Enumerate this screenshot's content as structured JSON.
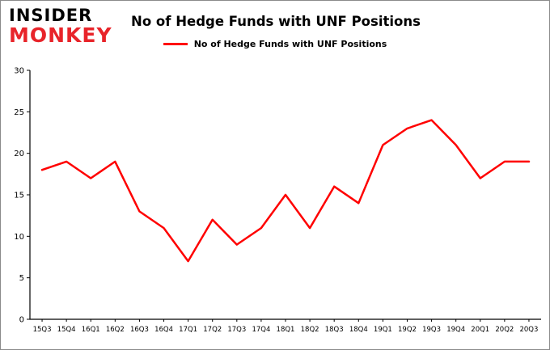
{
  "logo": {
    "line1": "INSIDER",
    "line2": "MONKEY"
  },
  "title": "No of Hedge Funds with UNF Positions",
  "legend": {
    "label": "No of Hedge Funds with UNF Positions",
    "color": "#ff0000"
  },
  "chart_data": {
    "type": "line",
    "title": "No of Hedge Funds with UNF Positions",
    "xlabel": "",
    "ylabel": "",
    "categories": [
      "15Q3",
      "15Q4",
      "16Q1",
      "16Q2",
      "16Q3",
      "16Q4",
      "17Q1",
      "17Q2",
      "17Q3",
      "17Q4",
      "18Q1",
      "18Q2",
      "18Q3",
      "18Q4",
      "19Q1",
      "19Q2",
      "19Q3",
      "19Q4",
      "20Q1",
      "20Q2",
      "20Q3"
    ],
    "series": [
      {
        "name": "No of Hedge Funds with UNF Positions",
        "values": [
          18,
          19,
          17,
          19,
          13,
          11,
          7,
          12,
          9,
          11,
          15,
          11,
          16,
          14,
          21,
          23,
          24,
          21,
          17,
          19,
          19
        ]
      }
    ],
    "ylim": [
      0,
      30
    ],
    "yticks": [
      0,
      5,
      10,
      15,
      20,
      25,
      30
    ],
    "line_color": "#ff0000",
    "grid": false,
    "legend_position": "top"
  }
}
